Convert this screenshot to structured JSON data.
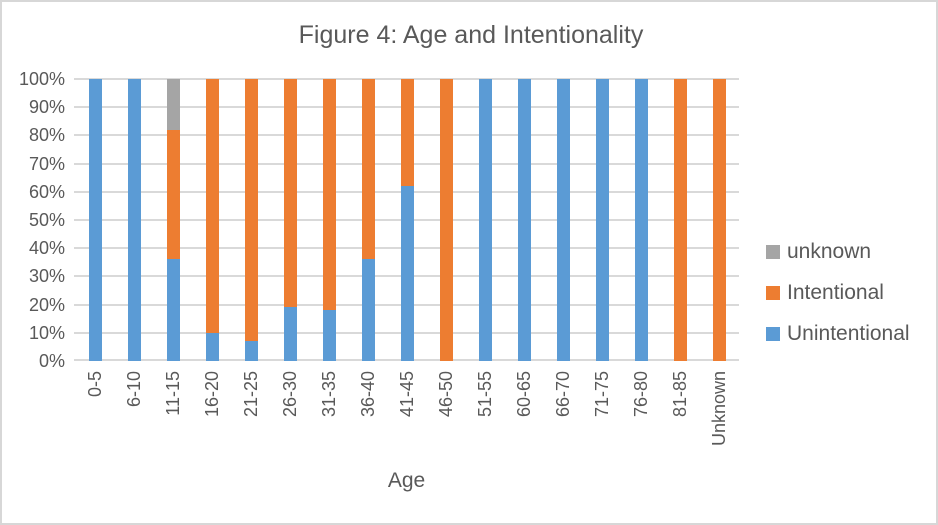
{
  "chart_data": {
    "type": "bar",
    "stacked": true,
    "percent_stacked": true,
    "title": "Figure 4: Age and Intentionality",
    "xlabel": "Age",
    "ylabel": "",
    "ylim": [
      0,
      100
    ],
    "grid": "horizontal",
    "legend_position": "right",
    "ytick_labels_bottom_up": [
      "0%",
      "10%",
      "20%",
      "30%",
      "40%",
      "50%",
      "60%",
      "70%",
      "80%",
      "90%",
      "100%"
    ],
    "categories": [
      "0-5",
      "6-10",
      "11-15",
      "16-20",
      "21-25",
      "26-30",
      "31-35",
      "36-40",
      "41-45",
      "46-50",
      "51-55",
      "60-65",
      "66-70",
      "71-75",
      "76-80",
      "81-85",
      "Unknown"
    ],
    "series": [
      {
        "name": "Unintentional",
        "color": "#5B9BD5",
        "values": [
          100,
          100,
          36,
          10,
          7,
          19,
          18,
          36,
          62,
          0,
          100,
          100,
          100,
          100,
          100,
          0,
          0
        ]
      },
      {
        "name": "Intentional",
        "color": "#ED7D31",
        "values": [
          0,
          0,
          46,
          90,
          93,
          81,
          82,
          64,
          38,
          100,
          0,
          0,
          0,
          0,
          0,
          100,
          100
        ]
      },
      {
        "name": "unknown",
        "color": "#A5A5A5",
        "values": [
          0,
          0,
          18,
          0,
          0,
          0,
          0,
          0,
          0,
          0,
          0,
          0,
          0,
          0,
          0,
          0,
          0
        ]
      }
    ],
    "legend_entries_top_down": [
      "unknown",
      "Intentional",
      "Unintentional"
    ],
    "colors": {
      "gridline": "#D9D9D9",
      "text": "#595959",
      "background": "#FFFFFF",
      "frame_border": "#D7D7D7"
    }
  }
}
